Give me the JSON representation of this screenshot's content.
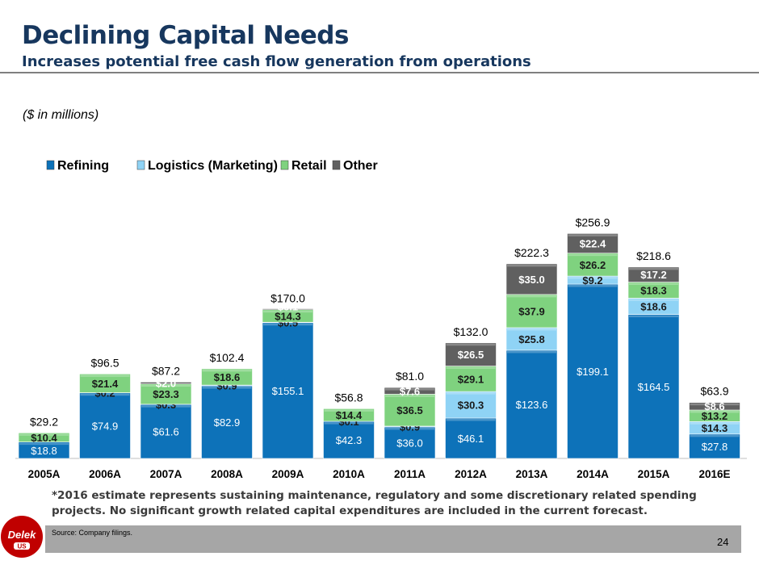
{
  "header": {
    "title": "Declining Capital Needs",
    "subtitle": "Increases potential free cash flow generation from operations",
    "units": "($ in millions)"
  },
  "footer": {
    "note": "*2016 estimate represents sustaining maintenance, regulatory and some discretionary related spending projects. No significant growth related capital expenditures are included in the current forecast.",
    "source": "Source: Company filings.",
    "page_number": "24",
    "logo_text": "Delek US"
  },
  "colors": {
    "refining": "#0d72b9",
    "logistics": "#8fd3f5",
    "retail": "#7fd27f",
    "other": "#606060",
    "title": "#17375e"
  },
  "chart_data": {
    "type": "bar",
    "stacked": true,
    "title": "",
    "xlabel": "",
    "ylabel": "($ in millions)",
    "ylim": [
      0,
      260
    ],
    "grid": false,
    "legend_position": "top-left",
    "categories": [
      "2005A",
      "2006A",
      "2007A",
      "2008A",
      "2009A",
      "2010A",
      "2011A",
      "2012A",
      "2013A",
      "2014A",
      "2015A",
      "2016E"
    ],
    "series": [
      {
        "name": "Refining",
        "key": "refining",
        "values": [
          18.8,
          74.9,
          61.6,
          82.9,
          155.1,
          42.3,
          36.0,
          46.1,
          123.6,
          199.1,
          164.5,
          27.8
        ],
        "labels": [
          "$18.8",
          "$74.9",
          "$61.6",
          "$82.9",
          "$155.1",
          "$42.3",
          "$36.0",
          "$46.1",
          "$123.6",
          "$199.1",
          "$164.5",
          "$27.8"
        ]
      },
      {
        "name": "Logistics (Marketing)",
        "key": "logistics",
        "values": [
          0,
          0.2,
          0.3,
          0.9,
          0.5,
          0.1,
          0.9,
          30.3,
          25.8,
          9.2,
          18.6,
          14.3
        ],
        "labels": [
          "",
          "$0.2",
          "$0.3",
          "$0.9",
          "$0.5",
          "$0.1",
          "$0.9",
          "$30.3",
          "$25.8",
          "$9.2",
          "$18.6",
          "$14.3"
        ]
      },
      {
        "name": "Retail",
        "key": "retail",
        "values": [
          10.4,
          21.4,
          23.3,
          18.6,
          14.3,
          14.4,
          36.5,
          29.1,
          37.9,
          26.2,
          18.3,
          13.2
        ],
        "labels": [
          "$10.4",
          "$21.4",
          "$23.3",
          "$18.6",
          "$14.3",
          "$14.4",
          "$36.5",
          "$29.1",
          "$37.9",
          "$26.2",
          "$18.3",
          "$13.2"
        ]
      },
      {
        "name": "Other",
        "key": "other",
        "values": [
          0,
          0,
          2.0,
          0,
          0.1,
          0,
          7.6,
          26.5,
          35.0,
          22.4,
          17.2,
          8.6
        ],
        "labels": [
          "",
          "",
          "$2.0",
          "",
          "$0.1",
          "",
          "$7.6",
          "$26.5",
          "$35.0",
          "$22.4",
          "$17.2",
          "$8.6"
        ]
      }
    ],
    "totals": [
      29.2,
      96.5,
      87.2,
      102.4,
      170.0,
      56.8,
      81.0,
      132.0,
      222.3,
      256.9,
      218.6,
      63.9
    ],
    "total_labels": [
      "$29.2",
      "$96.5",
      "$87.2",
      "$102.4",
      "$170.0",
      "$56.8",
      "$81.0",
      "$132.0",
      "$222.3",
      "$256.9",
      "$218.6",
      "$63.9"
    ]
  }
}
